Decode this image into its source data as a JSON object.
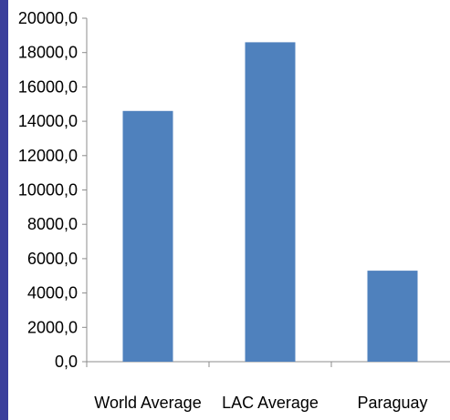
{
  "colors": {
    "bar": "#4f81bd",
    "left_accent": "#3b3f9b",
    "axis": "#8c8c8c"
  },
  "chart_data": {
    "type": "bar",
    "title": "",
    "xlabel": "",
    "ylabel": "",
    "categories": [
      "World Average",
      "LAC Average",
      "Paraguay"
    ],
    "values": [
      14600,
      18600,
      5300
    ],
    "ylim": [
      0,
      20000
    ],
    "yticks": [
      0,
      2000,
      4000,
      6000,
      8000,
      10000,
      12000,
      14000,
      16000,
      18000,
      20000
    ],
    "ytick_labels": [
      "0,0",
      "2000,0",
      "4000,0",
      "6000,0",
      "8000,0",
      "10000,0",
      "12000,0",
      "14000,0",
      "16000,0",
      "18000,0",
      "20000,0"
    ],
    "grid": false,
    "legend": "none"
  }
}
